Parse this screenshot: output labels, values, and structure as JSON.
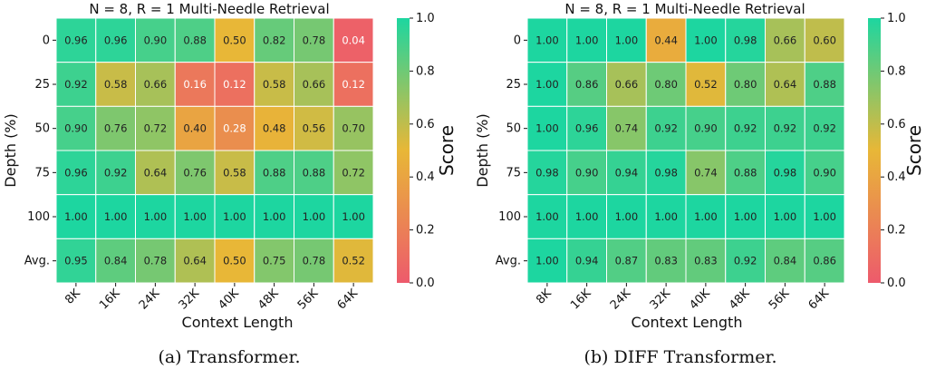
{
  "chart_data": [
    {
      "type": "heatmap",
      "title": "N = 8, R = 1 Multi-Needle Retrieval",
      "xlabel": "Context Length",
      "ylabel": "Depth (%)",
      "x_categories": [
        "8K",
        "16K",
        "24K",
        "32K",
        "40K",
        "48K",
        "56K",
        "64K"
      ],
      "y_categories": [
        "0",
        "25",
        "50",
        "75",
        "100",
        "Avg."
      ],
      "values": [
        [
          0.96,
          0.96,
          0.9,
          0.88,
          0.5,
          0.82,
          0.78,
          0.04
        ],
        [
          0.92,
          0.58,
          0.66,
          0.16,
          0.12,
          0.58,
          0.66,
          0.12
        ],
        [
          0.9,
          0.76,
          0.72,
          0.4,
          0.28,
          0.48,
          0.56,
          0.7
        ],
        [
          0.96,
          0.92,
          0.64,
          0.76,
          0.58,
          0.88,
          0.88,
          0.72
        ],
        [
          1.0,
          1.0,
          1.0,
          1.0,
          1.0,
          1.0,
          1.0,
          1.0
        ],
        [
          0.95,
          0.84,
          0.78,
          0.64,
          0.5,
          0.75,
          0.78,
          0.52
        ]
      ],
      "colorbar": {
        "label": "Score",
        "range": [
          0.0,
          1.0
        ],
        "ticks": [
          "0.0",
          "0.2",
          "0.4",
          "0.6",
          "0.8",
          "1.0"
        ]
      },
      "caption": "(a) Transformer."
    },
    {
      "type": "heatmap",
      "title": "N = 8, R = 1 Multi-Needle Retrieval",
      "xlabel": "Context Length",
      "ylabel": "Depth (%)",
      "x_categories": [
        "8K",
        "16K",
        "24K",
        "32K",
        "40K",
        "48K",
        "56K",
        "64K"
      ],
      "y_categories": [
        "0",
        "25",
        "50",
        "75",
        "100",
        "Avg."
      ],
      "values": [
        [
          1.0,
          1.0,
          1.0,
          0.44,
          1.0,
          0.98,
          0.66,
          0.6
        ],
        [
          1.0,
          0.86,
          0.66,
          0.8,
          0.52,
          0.8,
          0.64,
          0.88
        ],
        [
          1.0,
          0.96,
          0.74,
          0.92,
          0.9,
          0.92,
          0.92,
          0.92
        ],
        [
          0.98,
          0.9,
          0.94,
          0.98,
          0.74,
          0.88,
          0.98,
          0.9
        ],
        [
          1.0,
          1.0,
          1.0,
          1.0,
          1.0,
          1.0,
          1.0,
          1.0
        ],
        [
          1.0,
          0.94,
          0.87,
          0.83,
          0.83,
          0.92,
          0.84,
          0.86
        ]
      ],
      "colorbar": {
        "label": "Score",
        "range": [
          0.0,
          1.0
        ],
        "ticks": [
          "0.0",
          "0.2",
          "0.4",
          "0.6",
          "0.8",
          "1.0"
        ]
      },
      "caption": "(b) DIFF Transformer."
    }
  ],
  "colors": {
    "low": "#ed5a6c",
    "mid": "#e8b737",
    "high": "#1dd6a0"
  }
}
